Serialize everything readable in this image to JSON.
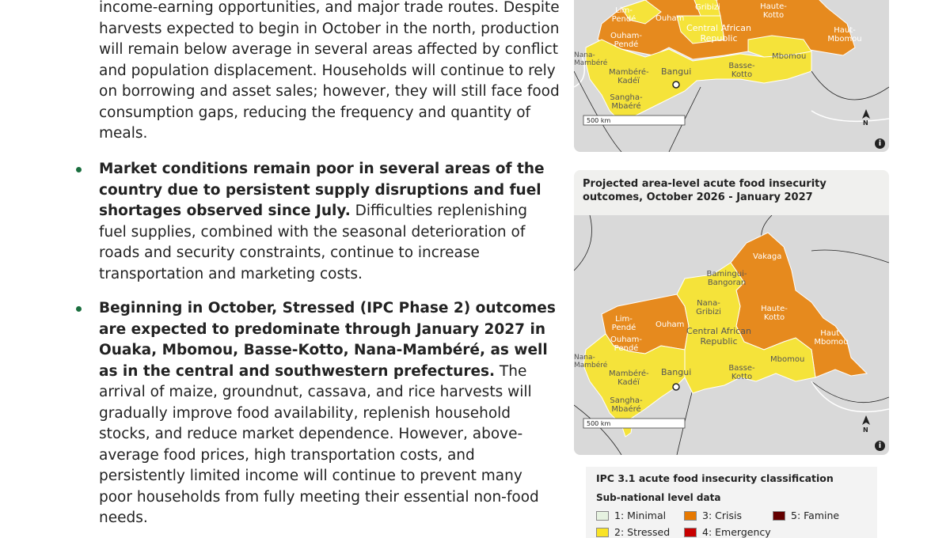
{
  "intro": {
    "lines": [
      "income-earning opportunities, and major trade routes. Despite",
      "harvests expected to begin in October in the north, production",
      "will remain below average in several areas affected by conflict",
      "and population displacement. Households will continue to rely",
      "on borrowing and asset sales; however, they will still face food",
      "consumption gaps, reducing the frequency and quantity of",
      "meals."
    ]
  },
  "bullets": [
    {
      "bold": "Market conditions remain poor in several areas of the country due to persistent supply disruptions and fuel shortages observed since July.",
      "text": " Difficulties replenishing fuel supplies, combined with the seasonal deterioration of roads and security constraints, continue to increase transportation and marketing costs."
    },
    {
      "bold": "Beginning in October, Stressed (IPC Phase 2) outcomes are expected to predominate through January 2027 in Ouaka, Mbomou, Basse-Kotto, Nana-Mambéré, as well as in the central and southwestern prefectures.",
      "text": " The arrival of maize, groundnut, cassava, and rice harvests will gradually improve food availability, replenish household stocks, and reduce market dependence. However, above-average food prices, high transportation costs, and persistently limited income will continue to prevent many poor households from fully meeting their essential non-food needs."
    }
  ],
  "map1": {
    "labels": {
      "lim_pende": "Lim-Pendé",
      "ouham": "Ouham",
      "ouham_pende": "Ouham-Pendé",
      "gribizi": "Gribizi",
      "haute_kotto": "Haute-Kotto",
      "car": "Central African Republic",
      "haut_mbomou": "Haut-Mbomou",
      "nana_mambere": "Nana-Mambéré",
      "mambere_kadei": "Mambéré-Kadéï",
      "bangui": "Bangui",
      "basse_kotto": "Basse-Kotto",
      "mbomou": "Mbomou",
      "sangha_mbaere": "Sangha-Mbaéré",
      "scale": "500 km",
      "north": "N"
    }
  },
  "map2": {
    "title": "Projected area-level acute food insecurity outcomes, October 2026 - January 2027",
    "labels": {
      "vakaga": "Vakaga",
      "bamingui_bangoran": "Bamingui-Bangoran",
      "nana_gribizi": "Nana-Gribizi",
      "lim_pende": "Lim-Pendé",
      "ouham": "Ouham",
      "ouham_pende": "Ouham-Pendé",
      "car": "Central African Republic",
      "haute_kotto": "Haute-Kotto",
      "haut_mbomou": "Haut-Mbomou",
      "nana_mambere": "Nana-Mambéré",
      "mambere_kadei": "Mambéré-Kadéï",
      "bangui": "Bangui",
      "basse_kotto": "Basse-Kotto",
      "mbomou": "Mbomou",
      "sangha_mbaere": "Sangha-Mbaéré",
      "scale": "500 km",
      "north": "N"
    }
  },
  "legend": {
    "title": "IPC 3.1 acute food insecurity classification",
    "subtitle": "Sub-national level data",
    "items": [
      {
        "label": "1: Minimal",
        "color": "#e6f2e0"
      },
      {
        "label": "2: Stressed",
        "color": "#f9e326"
      },
      {
        "label": "3: Crisis",
        "color": "#e67800"
      },
      {
        "label": "4: Emergency",
        "color": "#c80000"
      },
      {
        "label": "5: Famine",
        "color": "#640000"
      }
    ]
  },
  "colors": {
    "stressed": "#f5e33a",
    "crisis": "#e68a1e",
    "neighbor": "#d9d9d9",
    "border": "#ffffff"
  },
  "icons": [
    "info-icon",
    "north-arrow-icon",
    "bangui-city-icon"
  ]
}
